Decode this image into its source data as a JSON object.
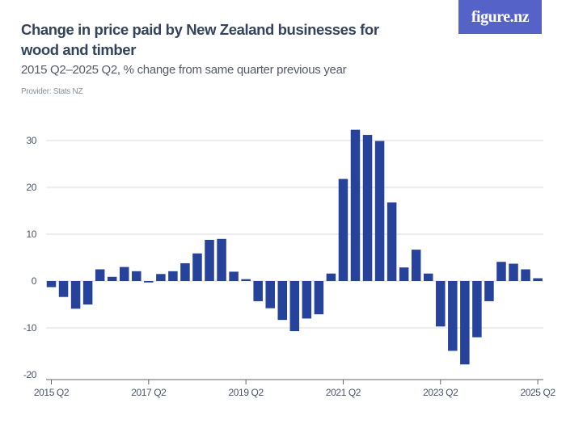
{
  "header": {
    "title": "Change in price paid by New Zealand businesses for wood and timber",
    "subtitle": "2015 Q2–2025 Q2, % change from same quarter previous year",
    "provider": "Provider: Stats NZ",
    "logo_text": "figure.nz"
  },
  "colors": {
    "bar": "#26429a",
    "logo_bg": "#5562c8",
    "grid": "#e2e2e2"
  },
  "chart_data": {
    "type": "bar",
    "title": "Change in price paid by New Zealand businesses for wood and timber",
    "subtitle": "2015 Q2–2025 Q2, % change from same quarter previous year",
    "xlabel": "",
    "ylabel": "",
    "ylim": [
      -20,
      35
    ],
    "yticks": [
      -20,
      -10,
      0,
      10,
      20,
      30
    ],
    "grid": true,
    "xtick_labels": [
      "2015 Q2",
      "2017 Q2",
      "2019 Q2",
      "2021 Q2",
      "2023 Q2",
      "2025 Q2"
    ],
    "categories": [
      "2015 Q2",
      "2015 Q3",
      "2015 Q4",
      "2016 Q1",
      "2016 Q2",
      "2016 Q3",
      "2016 Q4",
      "2017 Q1",
      "2017 Q2",
      "2017 Q3",
      "2017 Q4",
      "2018 Q1",
      "2018 Q2",
      "2018 Q3",
      "2018 Q4",
      "2019 Q1",
      "2019 Q2",
      "2019 Q3",
      "2019 Q4",
      "2020 Q1",
      "2020 Q2",
      "2020 Q3",
      "2020 Q4",
      "2021 Q1",
      "2021 Q2",
      "2021 Q3",
      "2021 Q4",
      "2022 Q1",
      "2022 Q2",
      "2022 Q3",
      "2022 Q4",
      "2023 Q1",
      "2023 Q2",
      "2023 Q3",
      "2023 Q4",
      "2024 Q1",
      "2024 Q2",
      "2024 Q3",
      "2024 Q4",
      "2025 Q1",
      "2025 Q2"
    ],
    "values": [
      -1.3,
      -3.4,
      -5.9,
      -5.0,
      2.5,
      0.9,
      3.0,
      2.1,
      -0.3,
      1.5,
      2.1,
      3.8,
      5.9,
      8.8,
      9.0,
      2.0,
      0.4,
      -4.3,
      -5.8,
      -8.3,
      -10.7,
      -8.0,
      -7.1,
      1.6,
      21.8,
      32.3,
      31.2,
      29.9,
      16.8,
      2.9,
      6.7,
      1.6,
      -9.7,
      -14.9,
      -17.8,
      -12.0,
      -4.3,
      4.1,
      3.7,
      2.5,
      0.6
    ]
  }
}
